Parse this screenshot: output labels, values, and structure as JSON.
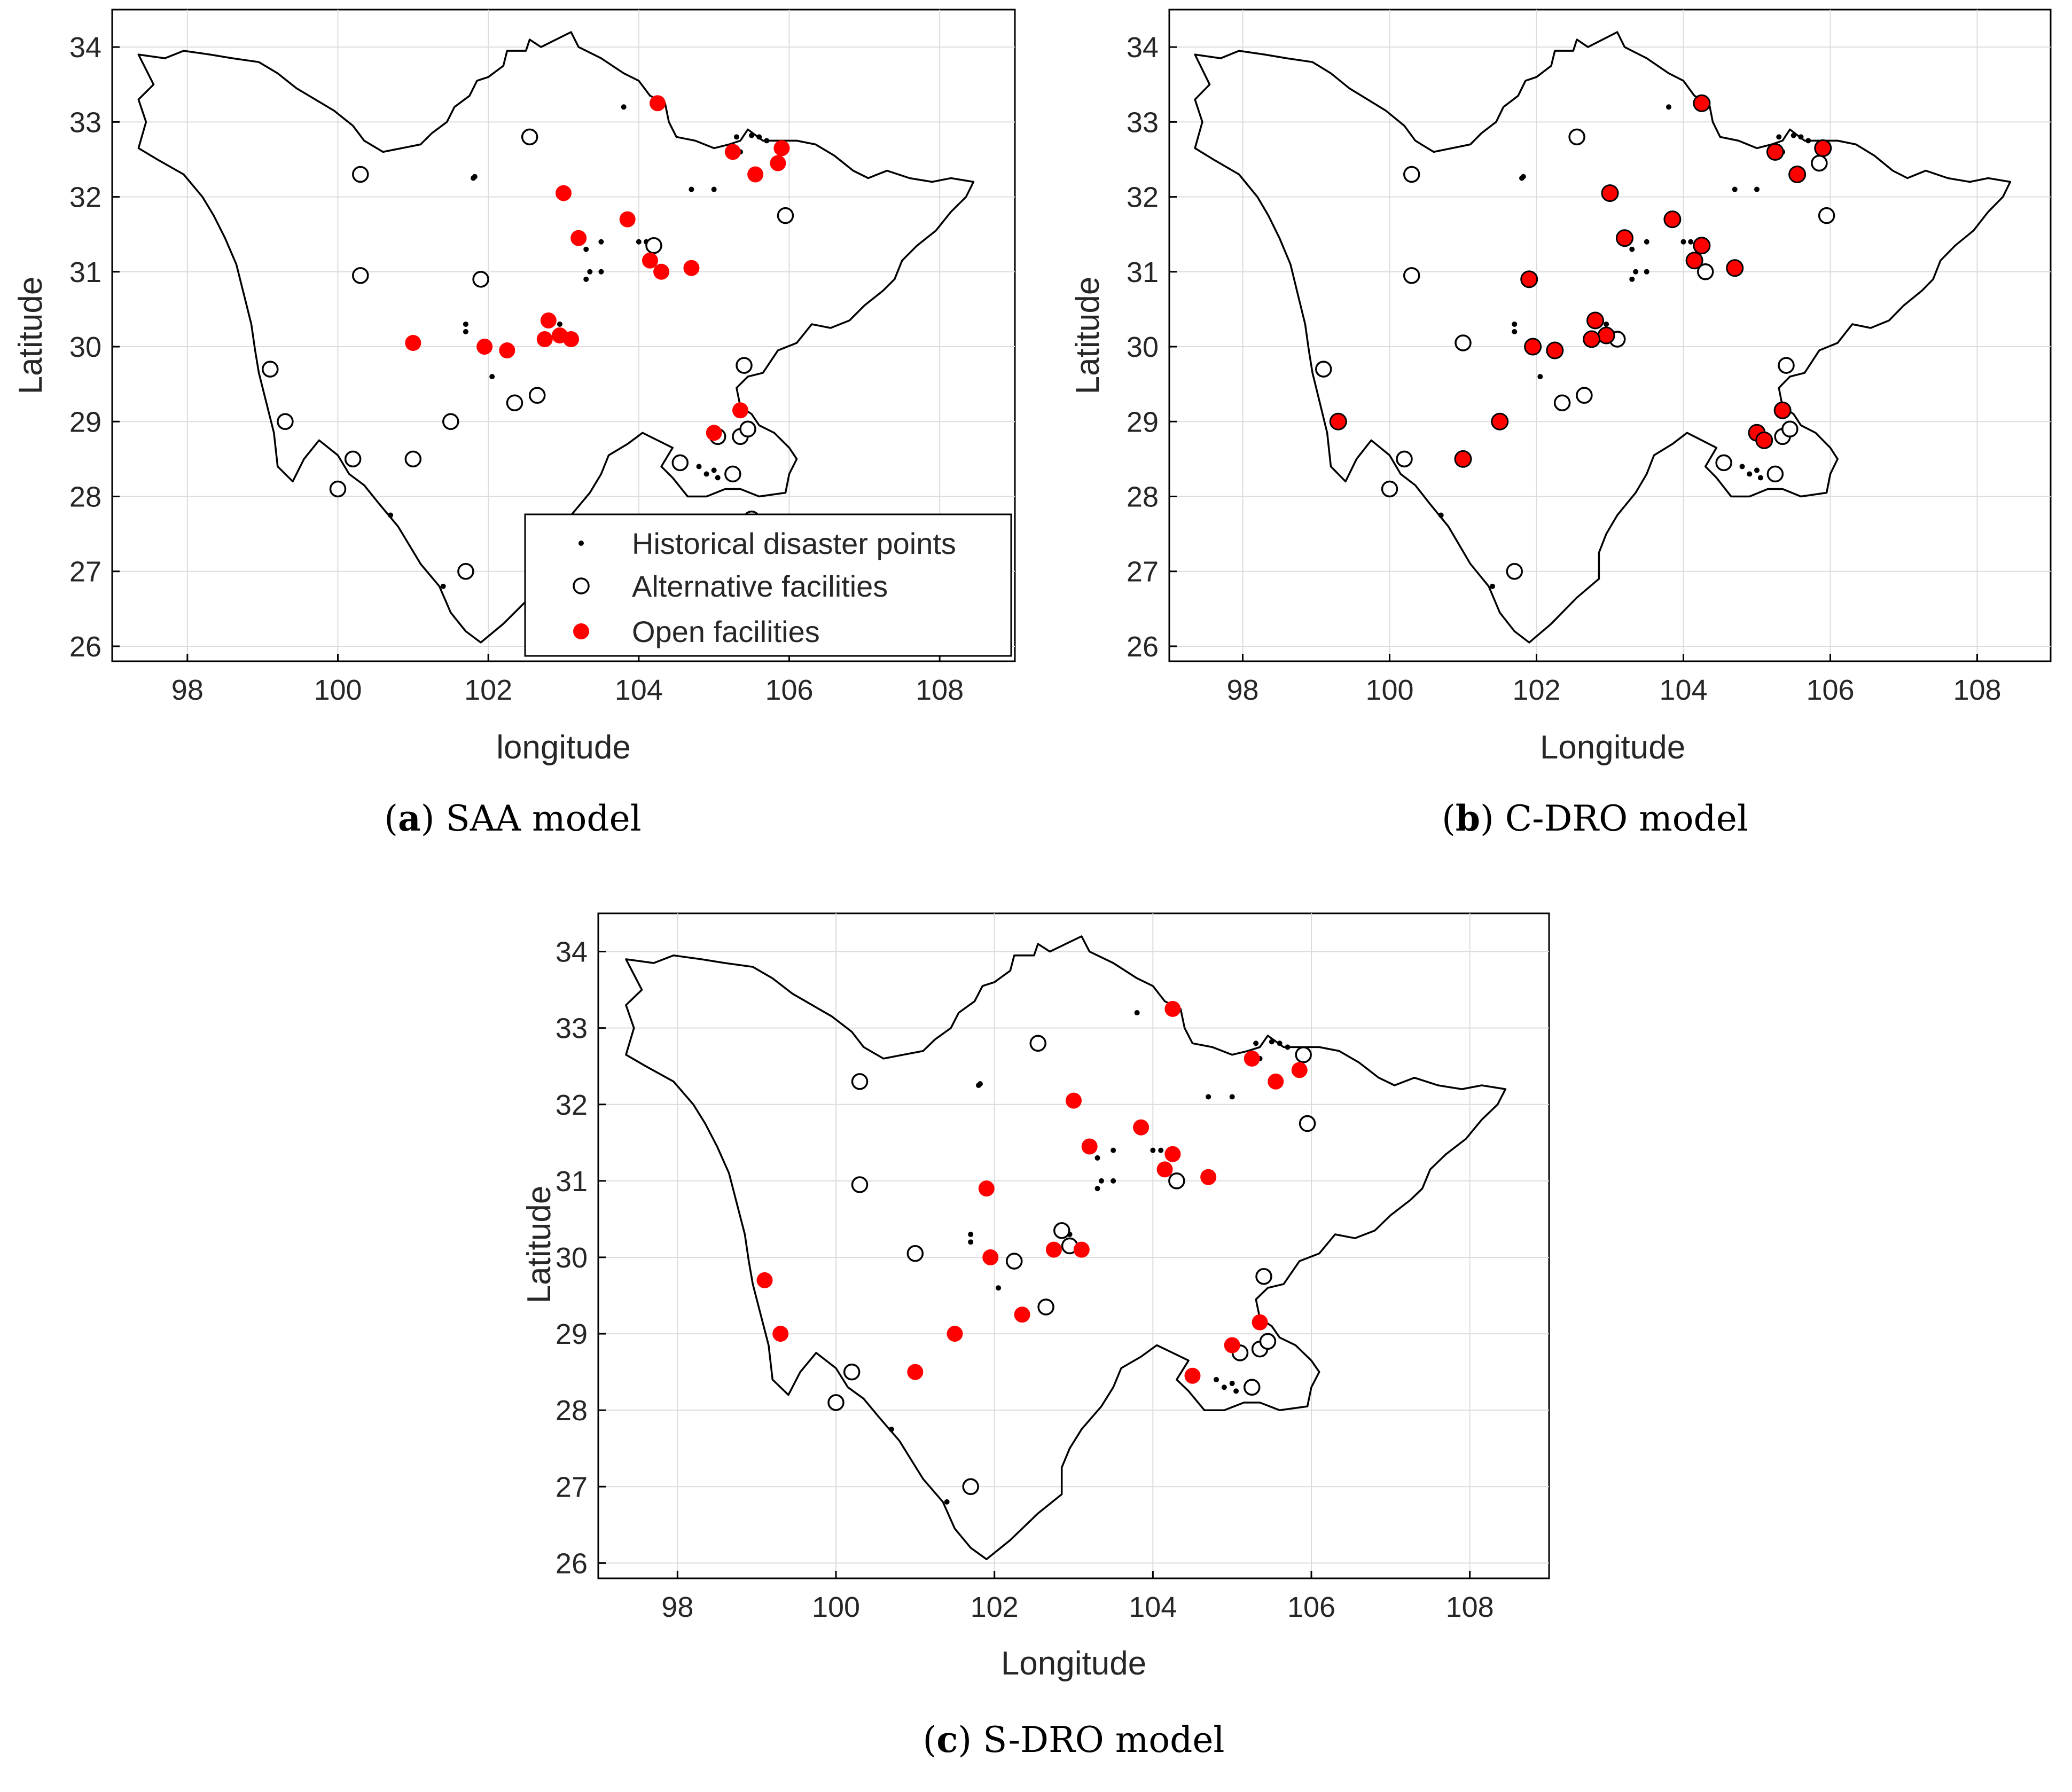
{
  "legend": {
    "historical": "Historical disaster points",
    "alternative": "Alternative facilities",
    "open": "Open facilities"
  },
  "colors": {
    "open": "#ff0000",
    "point": "#000000",
    "grid": "#dcdcdc",
    "boundary": "#000000"
  },
  "chart_data": [
    {
      "type": "scatter",
      "id": "a",
      "caption_label": "(a)",
      "caption_letter": "a",
      "caption_text": "SAA model",
      "xlabel": "longitude",
      "ylabel": "Latitude",
      "xlim": [
        97,
        109
      ],
      "ylim": [
        25.8,
        34.5
      ],
      "xticks": [
        98,
        100,
        102,
        104,
        106,
        108
      ],
      "yticks": [
        26,
        27,
        28,
        29,
        30,
        31,
        32,
        33,
        34
      ],
      "grid": true,
      "legend_position": "bottom-right",
      "series": [
        {
          "name": "Alternative facilities",
          "points": [
            [
              100.3,
              32.3
            ],
            [
              102.55,
              32.8
            ],
            [
              100.3,
              30.95
            ],
            [
              101.9,
              30.9
            ],
            [
              104.2,
              31.35
            ],
            [
              105.95,
              31.75
            ],
            [
              99.1,
              29.7
            ],
            [
              99.3,
              29.0
            ],
            [
              100.2,
              28.5
            ],
            [
              101.0,
              28.5
            ],
            [
              100.0,
              28.1
            ],
            [
              101.5,
              29.0
            ],
            [
              102.35,
              29.25
            ],
            [
              102.65,
              29.35
            ],
            [
              105.4,
              29.75
            ],
            [
              105.05,
              28.8
            ],
            [
              105.35,
              28.8
            ],
            [
              105.45,
              28.9
            ],
            [
              104.55,
              28.45
            ],
            [
              105.25,
              28.3
            ],
            [
              101.7,
              27.0
            ],
            [
              105.5,
              27.7
            ]
          ]
        },
        {
          "name": "Open facilities",
          "points": [
            [
              104.25,
              33.25
            ],
            [
              105.25,
              32.6
            ],
            [
              105.9,
              32.65
            ],
            [
              105.85,
              32.45
            ],
            [
              105.55,
              32.3
            ],
            [
              103.0,
              32.05
            ],
            [
              103.85,
              31.7
            ],
            [
              103.2,
              31.45
            ],
            [
              104.15,
              31.15
            ],
            [
              104.3,
              31.0
            ],
            [
              104.7,
              31.05
            ],
            [
              102.8,
              30.35
            ],
            [
              102.95,
              30.15
            ],
            [
              102.75,
              30.1
            ],
            [
              103.1,
              30.1
            ],
            [
              101.0,
              30.05
            ],
            [
              101.95,
              30.0
            ],
            [
              102.25,
              29.95
            ],
            [
              105.35,
              29.15
            ],
            [
              105.0,
              28.85
            ]
          ]
        }
      ]
    },
    {
      "type": "scatter",
      "id": "b",
      "caption_label": "(b)",
      "caption_letter": "b",
      "caption_text": "C-DRO model",
      "xlabel": "Longitude",
      "ylabel": "Latitude",
      "xlim": [
        97,
        109
      ],
      "ylim": [
        25.8,
        34.5
      ],
      "xticks": [
        98,
        100,
        102,
        104,
        106,
        108
      ],
      "yticks": [
        26,
        27,
        28,
        29,
        30,
        31,
        32,
        33,
        34
      ],
      "grid": true,
      "series": [
        {
          "name": "Alternative facilities",
          "points": [
            [
              100.3,
              32.3
            ],
            [
              102.55,
              32.8
            ],
            [
              100.3,
              30.95
            ],
            [
              105.85,
              32.45
            ],
            [
              105.95,
              31.75
            ],
            [
              104.3,
              31.0
            ],
            [
              101.0,
              30.05
            ],
            [
              103.1,
              30.1
            ],
            [
              102.65,
              29.35
            ],
            [
              102.35,
              29.25
            ],
            [
              99.1,
              29.7
            ],
            [
              100.2,
              28.5
            ],
            [
              100.0,
              28.1
            ],
            [
              105.4,
              29.75
            ],
            [
              105.35,
              28.8
            ],
            [
              105.45,
              28.9
            ],
            [
              104.55,
              28.45
            ],
            [
              105.25,
              28.3
            ],
            [
              101.7,
              27.0
            ]
          ]
        },
        {
          "name": "Open facilities",
          "points": [
            [
              104.25,
              33.25
            ],
            [
              105.25,
              32.6
            ],
            [
              105.9,
              32.65
            ],
            [
              105.55,
              32.3
            ],
            [
              103.0,
              32.05
            ],
            [
              103.85,
              31.7
            ],
            [
              103.2,
              31.45
            ],
            [
              104.25,
              31.35
            ],
            [
              104.15,
              31.15
            ],
            [
              104.7,
              31.05
            ],
            [
              101.9,
              30.9
            ],
            [
              102.8,
              30.35
            ],
            [
              102.95,
              30.15
            ],
            [
              102.75,
              30.1
            ],
            [
              101.95,
              30.0
            ],
            [
              102.25,
              29.95
            ],
            [
              99.3,
              29.0
            ],
            [
              101.5,
              29.0
            ],
            [
              101.0,
              28.5
            ],
            [
              105.35,
              29.15
            ],
            [
              105.0,
              28.85
            ],
            [
              105.1,
              28.75
            ]
          ]
        }
      ]
    },
    {
      "type": "scatter",
      "id": "c",
      "caption_label": "(c)",
      "caption_letter": "c",
      "caption_text": "S-DRO model",
      "xlabel": "Longitude",
      "ylabel": "Latitude",
      "xlim": [
        97,
        109
      ],
      "ylim": [
        25.8,
        34.5
      ],
      "xticks": [
        98,
        100,
        102,
        104,
        106,
        108
      ],
      "yticks": [
        26,
        27,
        28,
        29,
        30,
        31,
        32,
        33,
        34
      ],
      "grid": true,
      "series": [
        {
          "name": "Alternative facilities",
          "points": [
            [
              100.3,
              32.3
            ],
            [
              102.55,
              32.8
            ],
            [
              105.9,
              32.65
            ],
            [
              105.95,
              31.75
            ],
            [
              100.3,
              30.95
            ],
            [
              104.3,
              31.0
            ],
            [
              101.0,
              30.05
            ],
            [
              102.85,
              30.35
            ],
            [
              102.95,
              30.15
            ],
            [
              102.25,
              29.95
            ],
            [
              102.65,
              29.35
            ],
            [
              105.4,
              29.75
            ],
            [
              105.1,
              28.75
            ],
            [
              105.35,
              28.8
            ],
            [
              105.45,
              28.9
            ],
            [
              105.25,
              28.3
            ],
            [
              100.2,
              28.5
            ],
            [
              100.0,
              28.1
            ],
            [
              101.7,
              27.0
            ]
          ]
        },
        {
          "name": "Open facilities",
          "points": [
            [
              104.25,
              33.25
            ],
            [
              105.25,
              32.6
            ],
            [
              105.85,
              32.45
            ],
            [
              105.55,
              32.3
            ],
            [
              103.0,
              32.05
            ],
            [
              103.85,
              31.7
            ],
            [
              103.2,
              31.45
            ],
            [
              104.25,
              31.35
            ],
            [
              104.15,
              31.15
            ],
            [
              104.7,
              31.05
            ],
            [
              101.9,
              30.9
            ],
            [
              102.75,
              30.1
            ],
            [
              103.1,
              30.1
            ],
            [
              101.95,
              30.0
            ],
            [
              99.1,
              29.7
            ],
            [
              99.3,
              29.0
            ],
            [
              101.5,
              29.0
            ],
            [
              102.35,
              29.25
            ],
            [
              101.0,
              28.5
            ],
            [
              105.35,
              29.15
            ],
            [
              105.0,
              28.85
            ],
            [
              104.5,
              28.45
            ]
          ]
        }
      ]
    }
  ],
  "historical_points": [
    [
      103.8,
      33.2
    ],
    [
      101.8,
      32.25
    ],
    [
      101.82,
      32.27
    ],
    [
      104.7,
      32.1
    ],
    [
      105.0,
      32.1
    ],
    [
      105.3,
      32.8
    ],
    [
      105.5,
      32.82
    ],
    [
      105.6,
      32.8
    ],
    [
      105.7,
      32.75
    ],
    [
      105.35,
      32.6
    ],
    [
      103.3,
      31.3
    ],
    [
      103.5,
      31.4
    ],
    [
      104.0,
      31.4
    ],
    [
      104.1,
      31.4
    ],
    [
      103.35,
      31.0
    ],
    [
      103.5,
      31.0
    ],
    [
      103.3,
      30.9
    ],
    [
      101.7,
      30.3
    ],
    [
      101.7,
      30.2
    ],
    [
      102.95,
      30.3
    ],
    [
      102.05,
      29.6
    ],
    [
      104.8,
      28.4
    ],
    [
      104.9,
      28.3
    ],
    [
      105.0,
      28.35
    ],
    [
      105.05,
      28.25
    ],
    [
      100.7,
      27.75
    ],
    [
      101.4,
      26.8
    ]
  ],
  "boundary": [
    [
      97.35,
      33.9
    ],
    [
      97.7,
      33.85
    ],
    [
      97.95,
      33.95
    ],
    [
      98.3,
      33.9
    ],
    [
      98.6,
      33.85
    ],
    [
      98.95,
      33.8
    ],
    [
      99.2,
      33.65
    ],
    [
      99.45,
      33.45
    ],
    [
      99.7,
      33.3
    ],
    [
      99.95,
      33.15
    ],
    [
      100.2,
      32.95
    ],
    [
      100.35,
      32.75
    ],
    [
      100.6,
      32.6
    ],
    [
      100.85,
      32.65
    ],
    [
      101.1,
      32.7
    ],
    [
      101.25,
      32.85
    ],
    [
      101.45,
      33.0
    ],
    [
      101.55,
      33.2
    ],
    [
      101.75,
      33.35
    ],
    [
      101.85,
      33.55
    ],
    [
      102.0,
      33.6
    ],
    [
      102.2,
      33.75
    ],
    [
      102.25,
      33.95
    ],
    [
      102.5,
      33.95
    ],
    [
      102.55,
      34.1
    ],
    [
      102.7,
      34.0
    ],
    [
      102.9,
      34.1
    ],
    [
      103.1,
      34.2
    ],
    [
      103.2,
      34.0
    ],
    [
      103.5,
      33.85
    ],
    [
      103.8,
      33.65
    ],
    [
      104.0,
      33.55
    ],
    [
      104.15,
      33.35
    ],
    [
      104.35,
      33.25
    ],
    [
      104.4,
      33.0
    ],
    [
      104.5,
      32.8
    ],
    [
      104.75,
      32.75
    ],
    [
      105.0,
      32.65
    ],
    [
      105.2,
      32.7
    ],
    [
      105.35,
      32.75
    ],
    [
      105.45,
      32.9
    ],
    [
      105.65,
      32.75
    ],
    [
      105.9,
      32.75
    ],
    [
      106.1,
      32.75
    ],
    [
      106.35,
      32.7
    ],
    [
      106.6,
      32.55
    ],
    [
      106.85,
      32.35
    ],
    [
      107.05,
      32.25
    ],
    [
      107.3,
      32.35
    ],
    [
      107.6,
      32.25
    ],
    [
      107.9,
      32.2
    ],
    [
      108.15,
      32.25
    ],
    [
      108.45,
      32.2
    ],
    [
      108.35,
      32.0
    ],
    [
      108.15,
      31.8
    ],
    [
      107.95,
      31.55
    ],
    [
      107.7,
      31.35
    ],
    [
      107.5,
      31.15
    ],
    [
      107.4,
      30.9
    ],
    [
      107.25,
      30.75
    ],
    [
      107.0,
      30.55
    ],
    [
      106.8,
      30.35
    ],
    [
      106.55,
      30.25
    ],
    [
      106.3,
      30.3
    ],
    [
      106.1,
      30.05
    ],
    [
      105.85,
      29.95
    ],
    [
      105.65,
      29.65
    ],
    [
      105.45,
      29.6
    ],
    [
      105.3,
      29.45
    ],
    [
      105.35,
      29.2
    ],
    [
      105.5,
      29.1
    ],
    [
      105.6,
      28.95
    ],
    [
      105.8,
      28.85
    ],
    [
      106.0,
      28.65
    ],
    [
      106.1,
      28.5
    ],
    [
      106.0,
      28.3
    ],
    [
      105.95,
      28.05
    ],
    [
      105.6,
      28.0
    ],
    [
      105.35,
      28.1
    ],
    [
      105.15,
      28.1
    ],
    [
      104.9,
      28.0
    ],
    [
      104.65,
      28.0
    ],
    [
      104.45,
      28.25
    ],
    [
      104.3,
      28.4
    ],
    [
      104.45,
      28.65
    ],
    [
      104.25,
      28.75
    ],
    [
      104.05,
      28.85
    ],
    [
      103.85,
      28.7
    ],
    [
      103.6,
      28.55
    ],
    [
      103.5,
      28.3
    ],
    [
      103.35,
      28.05
    ],
    [
      103.1,
      27.75
    ],
    [
      102.95,
      27.5
    ],
    [
      102.85,
      27.25
    ],
    [
      102.85,
      26.9
    ],
    [
      102.55,
      26.65
    ],
    [
      102.2,
      26.3
    ],
    [
      101.9,
      26.05
    ],
    [
      101.7,
      26.2
    ],
    [
      101.5,
      26.45
    ],
    [
      101.35,
      26.8
    ],
    [
      101.1,
      27.1
    ],
    [
      100.8,
      27.6
    ],
    [
      100.55,
      27.9
    ],
    [
      100.35,
      28.15
    ],
    [
      100.15,
      28.3
    ],
    [
      100.0,
      28.55
    ],
    [
      99.75,
      28.75
    ],
    [
      99.55,
      28.5
    ],
    [
      99.4,
      28.2
    ],
    [
      99.2,
      28.4
    ],
    [
      99.15,
      28.85
    ],
    [
      99.05,
      29.25
    ],
    [
      98.95,
      29.65
    ],
    [
      98.9,
      29.95
    ],
    [
      98.85,
      30.3
    ],
    [
      98.75,
      30.7
    ],
    [
      98.65,
      31.1
    ],
    [
      98.5,
      31.45
    ],
    [
      98.35,
      31.75
    ],
    [
      98.2,
      32.0
    ],
    [
      97.95,
      32.3
    ],
    [
      97.6,
      32.5
    ],
    [
      97.35,
      32.65
    ],
    [
      97.45,
      33.0
    ],
    [
      97.35,
      33.3
    ],
    [
      97.55,
      33.5
    ],
    [
      97.35,
      33.9
    ]
  ]
}
